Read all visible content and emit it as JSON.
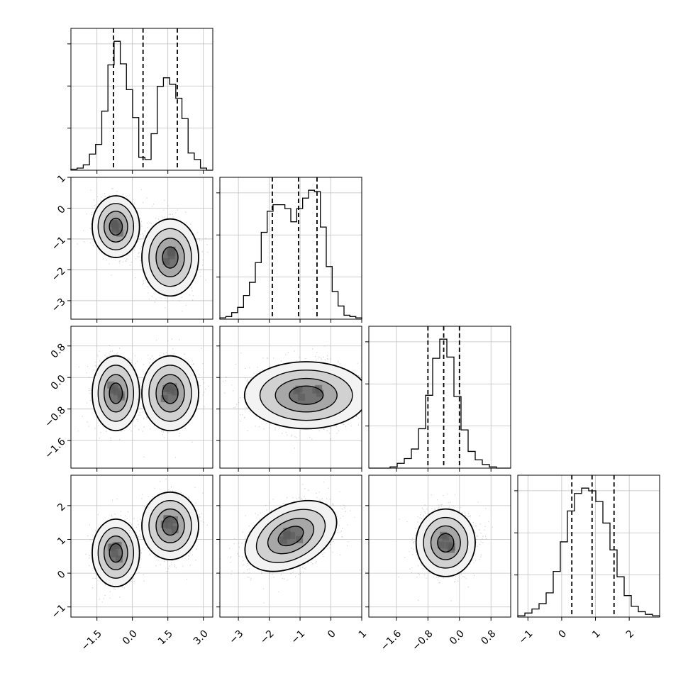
{
  "figure": {
    "background": "#ffffff",
    "ink_color": "#000000",
    "grid_color": "#bfbfbf"
  },
  "chart_data": {
    "type": "corner",
    "description_of_type": "corner",
    "dimensions": 4,
    "params": [
      {
        "range": [
          -2.6,
          3.4
        ],
        "ticks": [
          -1.5,
          0.0,
          1.5,
          3.0
        ],
        "tick_labels": [
          "−1.5",
          "0.0",
          "1.5",
          "3.0"
        ],
        "quantiles": [
          -0.8,
          0.45,
          1.9
        ],
        "hist_counts": [
          1,
          2,
          5,
          15,
          24,
          55,
          98,
          120,
          99,
          75,
          49,
          12,
          10,
          34,
          78,
          86,
          80,
          67,
          48,
          16,
          10,
          2,
          0
        ]
      },
      {
        "range": [
          -3.6,
          1.0
        ],
        "ticks": [
          -3,
          -2,
          -1,
          0,
          1
        ],
        "tick_labels": [
          "−3",
          "−2",
          "−1",
          "0",
          "1"
        ],
        "quantiles": [
          -1.9,
          -1.05,
          -0.45
        ],
        "hist_counts": [
          1,
          2,
          5,
          9,
          18,
          28,
          43,
          66,
          82,
          87,
          87,
          84,
          74,
          84,
          92,
          98,
          97,
          70,
          40,
          21,
          10,
          3,
          2,
          1
        ]
      },
      {
        "range": [
          -2.3,
          1.3
        ],
        "ticks": [
          -1.6,
          -0.8,
          0.0,
          0.8
        ],
        "tick_labels": [
          "−1.6",
          "−0.8",
          "0.0",
          "0.8"
        ],
        "quantiles": [
          -0.8,
          -0.4,
          0.0
        ],
        "hist_counts": [
          0,
          0,
          0,
          1,
          4,
          8,
          16,
          33,
          61,
          92,
          108,
          93,
          60,
          32,
          14,
          7,
          3,
          1,
          0,
          0
        ]
      },
      {
        "range": [
          -1.3,
          2.9
        ],
        "ticks": [
          -1,
          0,
          1,
          2
        ],
        "tick_labels": [
          "−1",
          "0",
          "1",
          "2"
        ],
        "quantiles": [
          0.3,
          0.9,
          1.55
        ],
        "hist_counts": [
          1,
          3,
          6,
          10,
          18,
          34,
          56,
          79,
          92,
          96,
          94,
          86,
          70,
          50,
          30,
          16,
          8,
          4,
          2,
          1
        ]
      }
    ],
    "scatter_pairs": [
      {
        "row": 1,
        "col": 0,
        "ylim_ticks": [
          1,
          0,
          -1,
          -2,
          -3
        ],
        "y_tick_labels": [
          "1",
          "0",
          "−1",
          "−2",
          "−3"
        ],
        "modes": [
          {
            "cx": -0.7,
            "cy": -0.6,
            "rx": 1.0,
            "ry": 1.0,
            "weight": 0.5,
            "rot": 0
          },
          {
            "cx": 1.6,
            "cy": -1.6,
            "rx": 1.2,
            "ry": 1.25,
            "weight": 0.5,
            "rot": 0
          }
        ]
      },
      {
        "row": 2,
        "col": 0,
        "y_tick_labels": [
          "0.8",
          "0.0",
          "−0.8",
          "−1.6"
        ],
        "modes": [
          {
            "cx": -0.7,
            "cy": -0.4,
            "rx": 1.0,
            "ry": 0.95,
            "weight": 0.5,
            "rot": 0
          },
          {
            "cx": 1.6,
            "cy": -0.4,
            "rx": 1.2,
            "ry": 0.95,
            "weight": 0.5,
            "rot": 0
          }
        ]
      },
      {
        "row": 2,
        "col": 1,
        "modes": [
          {
            "cx": -0.8,
            "cy": -0.45,
            "rx": 2.0,
            "ry": 0.85,
            "weight": 1.0,
            "rot": 0
          }
        ]
      },
      {
        "row": 3,
        "col": 0,
        "y_tick_labels": [
          "2",
          "1",
          "0",
          "−1"
        ],
        "modes": [
          {
            "cx": -0.7,
            "cy": 0.6,
            "rx": 1.0,
            "ry": 1.0,
            "weight": 0.5,
            "rot": 0
          },
          {
            "cx": 1.6,
            "cy": 1.4,
            "rx": 1.2,
            "ry": 1.0,
            "weight": 0.5,
            "rot": 0
          }
        ]
      },
      {
        "row": 3,
        "col": 1,
        "modes": [
          {
            "cx": -1.3,
            "cy": 1.1,
            "rx": 1.6,
            "ry": 0.9,
            "weight": 1.0,
            "rot": -28
          }
        ]
      },
      {
        "row": 3,
        "col": 2,
        "modes": [
          {
            "cx": -0.35,
            "cy": 0.9,
            "rx": 0.75,
            "ry": 1.0,
            "weight": 1.0,
            "rot": 0
          }
        ]
      }
    ]
  }
}
